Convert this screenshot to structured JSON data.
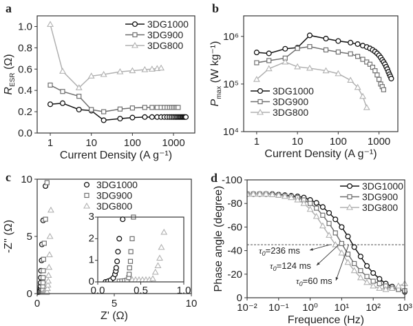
{
  "chart_data": [
    {
      "panel": "a",
      "type": "line",
      "xlabel": "Current Density (A g⁻¹)",
      "ylabel": {
        "main": "R",
        "sub": "ESR",
        "unit": " (Ω)"
      },
      "xscale": "log",
      "xlim": [
        0.48,
        3300
      ],
      "yscale": "linear",
      "ylim": [
        0,
        1.1
      ],
      "xticks": [
        {
          "v": 1,
          "label": "1"
        },
        {
          "v": 10,
          "label": "10"
        },
        {
          "v": 100,
          "label": "100"
        },
        {
          "v": 1000,
          "label": "1000"
        }
      ],
      "yticks": [
        {
          "v": 0,
          "label": "0.0"
        },
        {
          "v": 0.2,
          "label": "0.2"
        },
        {
          "v": 0.4,
          "label": "0.4"
        },
        {
          "v": 0.6,
          "label": "0.6"
        },
        {
          "v": 0.8,
          "label": "0.8"
        },
        {
          "v": 1.0,
          "label": "1.0"
        }
      ],
      "legend": "top-right",
      "series": [
        {
          "name": "3DG1000",
          "marker": "circle",
          "color": "#111111",
          "x": [
            1,
            2,
            5,
            10,
            20,
            50,
            100,
            200,
            300,
            400,
            500,
            600,
            700,
            800,
            900,
            1000,
            1100,
            1200,
            1300,
            1400,
            1500,
            1600,
            1700,
            1800,
            1900,
            2000
          ],
          "y": [
            0.27,
            0.28,
            0.22,
            0.21,
            0.12,
            0.135,
            0.145,
            0.15,
            0.15,
            0.15,
            0.15,
            0.15,
            0.15,
            0.15,
            0.15,
            0.15,
            0.15,
            0.15,
            0.15,
            0.15,
            0.15,
            0.15,
            0.15,
            0.15,
            0.15,
            0.15
          ]
        },
        {
          "name": "3DG900",
          "marker": "square",
          "color": "#6e6e6e",
          "x": [
            1,
            2,
            5,
            10,
            20,
            50,
            100,
            200,
            300,
            400,
            500,
            600,
            700,
            800,
            900,
            1000,
            1100,
            1200,
            1300
          ],
          "y": [
            0.45,
            0.39,
            0.345,
            0.22,
            0.2,
            0.225,
            0.235,
            0.24,
            0.24,
            0.24,
            0.24,
            0.24,
            0.24,
            0.24,
            0.24,
            0.24,
            0.24,
            0.24,
            0.24
          ]
        },
        {
          "name": "3DG800",
          "marker": "triangle",
          "color": "#b0b0b0",
          "x": [
            1,
            2,
            5,
            10,
            20,
            50,
            100,
            200,
            300,
            400,
            500
          ],
          "y": [
            1.02,
            0.58,
            0.425,
            0.535,
            0.55,
            0.575,
            0.585,
            0.595,
            0.6,
            0.605,
            0.61
          ]
        }
      ]
    },
    {
      "panel": "b",
      "type": "line",
      "xlabel": "Current Density (A g⁻¹)",
      "ylabel": {
        "main": "P",
        "sub": "max",
        "unit": " (W kg⁻¹)"
      },
      "xscale": "log",
      "xlim": [
        0.48,
        2900
      ],
      "yscale": "log",
      "ylim": [
        10000,
        2700000
      ],
      "xticks": [
        {
          "v": 1,
          "label": "1"
        },
        {
          "v": 10,
          "label": "10"
        },
        {
          "v": 100,
          "label": "100"
        },
        {
          "v": 1000,
          "label": "1000"
        }
      ],
      "yticks": [
        {
          "v": 10000,
          "label": "10⁴"
        },
        {
          "v": 100000,
          "label": "10⁵"
        },
        {
          "v": 1000000,
          "label": "10⁶"
        }
      ],
      "legend": "bottom-left",
      "series": [
        {
          "name": "3DG1000",
          "marker": "circle",
          "color": "#111111",
          "x": [
            1,
            2,
            5,
            10,
            20,
            50,
            100,
            200,
            300,
            400,
            500,
            600,
            700,
            800,
            900,
            1000,
            1100,
            1200,
            1300,
            1400,
            1500,
            1600,
            1700,
            1800,
            1900,
            2000
          ],
          "y": [
            460000,
            440000,
            550000,
            580000,
            1050000,
            900000,
            800000,
            740000,
            690000,
            640000,
            600000,
            560000,
            520000,
            480000,
            440000,
            400000,
            360000,
            320000,
            290000,
            260000,
            230000,
            205000,
            180000,
            160000,
            145000,
            130000
          ]
        },
        {
          "name": "3DG900",
          "marker": "square",
          "color": "#6e6e6e",
          "x": [
            1,
            2,
            5,
            10,
            20,
            50,
            100,
            200,
            300,
            400,
            500,
            600,
            700,
            800,
            900,
            1000,
            1100,
            1200,
            1300
          ],
          "y": [
            280000,
            310000,
            350000,
            560000,
            610000,
            520000,
            470000,
            430000,
            380000,
            330000,
            290000,
            260000,
            225000,
            190000,
            155000,
            125000,
            100000,
            88000,
            76000
          ]
        },
        {
          "name": "3DG800",
          "marker": "triangle",
          "color": "#b0b0b0",
          "x": [
            1,
            2,
            5,
            10,
            20,
            50,
            100,
            200,
            300,
            400,
            500
          ],
          "y": [
            125000,
            210000,
            290000,
            230000,
            215000,
            190000,
            165000,
            120000,
            85000,
            55000,
            32000
          ]
        }
      ]
    },
    {
      "panel": "c",
      "type": "scatter",
      "xlabel": "Z' (Ω)",
      "ylabel": {
        "main": "-Z''",
        "sub": "",
        "unit": " (Ω)"
      },
      "xscale": "linear",
      "xlim": [
        0,
        10
      ],
      "yscale": "linear",
      "ylim": [
        0,
        10
      ],
      "xticks": [
        {
          "v": 0,
          "label": "0"
        },
        {
          "v": 5,
          "label": "5"
        },
        {
          "v": 10,
          "label": "10"
        }
      ],
      "yticks": [
        {
          "v": 0,
          "label": "0"
        },
        {
          "v": 5,
          "label": "5"
        },
        {
          "v": 10,
          "label": "10"
        }
      ],
      "legend": "top-center",
      "inset": {
        "xlim": [
          0,
          1
        ],
        "ylim": [
          0,
          3
        ],
        "xticks": [
          {
            "v": 0,
            "label": "0.0"
          },
          {
            "v": 0.5,
            "label": "0.5"
          },
          {
            "v": 1.0,
            "label": "1.0"
          }
        ],
        "yticks": [
          {
            "v": 0,
            "label": "0"
          },
          {
            "v": 1,
            "label": "1"
          },
          {
            "v": 2,
            "label": "2"
          },
          {
            "v": 3,
            "label": "3"
          }
        ]
      },
      "series": [
        {
          "name": "3DG1000",
          "marker": "circle",
          "color": "#111111",
          "x": [
            0.09,
            0.12,
            0.15,
            0.18,
            0.2,
            0.21,
            0.215,
            0.225,
            0.235,
            0.25,
            0.29,
            0.31,
            0.39,
            0.54
          ],
          "y": [
            0,
            0.03,
            0.08,
            0.18,
            0.35,
            0.5,
            0.65,
            0.95,
            1.4,
            2.0,
            2.9,
            4.3,
            6.4,
            9.4
          ]
        },
        {
          "name": "3DG900",
          "marker": "square",
          "color": "#6e6e6e",
          "x": [
            0.25,
            0.28,
            0.31,
            0.34,
            0.36,
            0.365,
            0.37,
            0.38,
            0.385,
            0.4,
            0.415,
            0.46,
            0.54,
            0.64
          ],
          "y": [
            0.03,
            0.04,
            0.05,
            0.08,
            0.2,
            0.35,
            0.65,
            0.95,
            1.4,
            2.0,
            3.0,
            4.4,
            6.5,
            9.7
          ]
        },
        {
          "name": "3DG800",
          "marker": "triangle",
          "color": "#b0b0b0",
          "x": [
            0.4,
            0.44,
            0.48,
            0.52,
            0.56,
            0.6,
            0.64,
            0.67,
            0.7,
            0.72,
            0.74,
            0.77,
            0.8,
            0.83,
            0.89
          ],
          "y": [
            0.1,
            0.1,
            0.1,
            0.1,
            0.1,
            0.1,
            0.15,
            0.45,
            0.75,
            1.1,
            1.6,
            2.3,
            3.4,
            5.0,
            7.3
          ]
        }
      ]
    },
    {
      "panel": "d",
      "type": "line",
      "xlabel": "Frequence (Hz)",
      "ylabel": {
        "main": "Phase angle (degree)",
        "sub": "",
        "unit": ""
      },
      "xscale": "log",
      "xlim": [
        0.01,
        1000
      ],
      "yscale": "linear",
      "ylim": [
        0,
        -100
      ],
      "xticks": [
        {
          "v": 0.01,
          "label": "10⁻²"
        },
        {
          "v": 0.1,
          "label": "10⁻¹"
        },
        {
          "v": 1,
          "label": "10⁰"
        },
        {
          "v": 10,
          "label": "10¹"
        },
        {
          "v": 100,
          "label": "10²"
        },
        {
          "v": 1000,
          "label": "10³"
        }
      ],
      "yticks": [
        {
          "v": 0,
          "label": "0"
        },
        {
          "v": -20,
          "label": "-20"
        },
        {
          "v": -40,
          "label": "-40"
        },
        {
          "v": -60,
          "label": "-60"
        },
        {
          "v": -80,
          "label": "-80"
        },
        {
          "v": -100,
          "label": "-100"
        }
      ],
      "legend": "top-right",
      "reference_line": -45,
      "annotations": [
        {
          "label": "τ",
          "sub": "0",
          "text": "=236 ms",
          "x": 4.2,
          "y": -45
        },
        {
          "label": "τ",
          "sub": "0",
          "text": "=124 ms",
          "x": 8.1,
          "y": -45
        },
        {
          "label": "τ",
          "sub": "0",
          "text": "=60 ms",
          "x": 16.7,
          "y": -45
        }
      ],
      "series": [
        {
          "name": "3DG1000",
          "marker": "circle",
          "color": "#111111",
          "x": [
            0.01,
            0.0158,
            0.0251,
            0.0398,
            0.0631,
            0.1,
            0.158,
            0.251,
            0.398,
            0.631,
            1,
            1.58,
            2.51,
            3.98,
            6.31,
            10,
            15.8,
            25.1,
            39.8,
            63.1,
            100,
            158,
            251,
            398,
            631,
            1000
          ],
          "y": [
            -88,
            -88,
            -88,
            -88,
            -88,
            -87.5,
            -87,
            -86.5,
            -86,
            -85,
            -83,
            -80.5,
            -77,
            -72,
            -66.5,
            -60,
            -52,
            -43,
            -35,
            -27,
            -21,
            -16,
            -12,
            -9.5,
            -7.5,
            -5
          ]
        },
        {
          "name": "3DG900",
          "marker": "square",
          "color": "#6e6e6e",
          "x": [
            0.01,
            0.0158,
            0.0251,
            0.0398,
            0.0631,
            0.1,
            0.158,
            0.251,
            0.398,
            0.631,
            1,
            1.58,
            2.51,
            3.98,
            6.31,
            10,
            15.8,
            25.1,
            39.8,
            63.1,
            100,
            158,
            251,
            398,
            631,
            1000
          ],
          "y": [
            -88,
            -88,
            -88,
            -88,
            -87.5,
            -87,
            -86.5,
            -86,
            -85,
            -83,
            -80,
            -76,
            -70,
            -63,
            -55,
            -46,
            -37,
            -29,
            -23,
            -18,
            -14,
            -12,
            -10,
            -8,
            -7,
            -6
          ]
        },
        {
          "name": "3DG800",
          "marker": "triangle",
          "color": "#b0b0b0",
          "x": [
            0.01,
            0.0158,
            0.0251,
            0.0398,
            0.0631,
            0.1,
            0.158,
            0.251,
            0.398,
            0.631,
            1,
            1.58,
            2.51,
            3.98,
            6.31,
            10,
            15.8,
            25.1,
            39.8,
            63.1,
            100,
            158,
            251,
            398,
            631,
            1000
          ],
          "y": [
            -88,
            -88,
            -88,
            -88,
            -87.5,
            -87,
            -86,
            -85,
            -83,
            -80,
            -75,
            -69,
            -61,
            -53,
            -45,
            -38,
            -30,
            -23,
            -17,
            -13,
            -10,
            -8,
            -7,
            -8,
            -10,
            -12
          ]
        }
      ]
    }
  ]
}
